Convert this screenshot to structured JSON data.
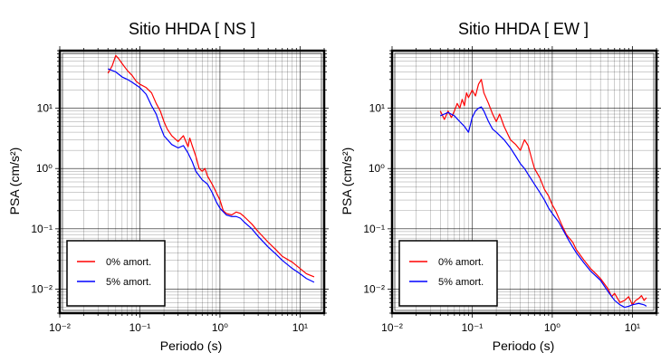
{
  "chart_data": [
    {
      "type": "line",
      "title": "Sitio HHDA [ NS ]",
      "xlabel": "Periodo (s)",
      "ylabel": "PSA (cm/s²)",
      "xscale": "log",
      "yscale": "log",
      "xlim": [
        0.01,
        20
      ],
      "ylim": [
        0.004,
        90
      ],
      "grid": true,
      "legend": "bottom-left",
      "x_ticks": [
        {
          "value": 0.01,
          "label": "10⁻²"
        },
        {
          "value": 0.1,
          "label": "10⁻¹"
        },
        {
          "value": 1,
          "label": "10⁰"
        },
        {
          "value": 10,
          "label": "10¹"
        }
      ],
      "y_ticks": [
        {
          "value": 0.01,
          "label": "10⁻²"
        },
        {
          "value": 0.1,
          "label": "10⁻¹"
        },
        {
          "value": 1,
          "label": "10⁰"
        },
        {
          "value": 10,
          "label": "10¹"
        }
      ],
      "series": [
        {
          "name": "0% amort.",
          "color": "#ff0000",
          "points": [
            [
              0.04,
              38
            ],
            [
              0.045,
              50
            ],
            [
              0.05,
              75
            ],
            [
              0.055,
              65
            ],
            [
              0.06,
              55
            ],
            [
              0.07,
              42
            ],
            [
              0.08,
              35
            ],
            [
              0.09,
              28
            ],
            [
              0.1,
              25
            ],
            [
              0.12,
              22
            ],
            [
              0.14,
              18
            ],
            [
              0.16,
              12
            ],
            [
              0.18,
              9
            ],
            [
              0.2,
              6
            ],
            [
              0.22,
              4.5
            ],
            [
              0.25,
              3.5
            ],
            [
              0.3,
              2.8
            ],
            [
              0.35,
              3.5
            ],
            [
              0.4,
              2.3
            ],
            [
              0.42,
              3.2
            ],
            [
              0.45,
              2.4
            ],
            [
              0.5,
              1.6
            ],
            [
              0.55,
              1.0
            ],
            [
              0.6,
              0.9
            ],
            [
              0.65,
              1.0
            ],
            [
              0.7,
              0.75
            ],
            [
              0.8,
              0.55
            ],
            [
              0.9,
              0.4
            ],
            [
              1.0,
              0.3
            ],
            [
              1.1,
              0.2
            ],
            [
              1.2,
              0.18
            ],
            [
              1.4,
              0.17
            ],
            [
              1.6,
              0.19
            ],
            [
              1.8,
              0.18
            ],
            [
              2.0,
              0.16
            ],
            [
              2.5,
              0.12
            ],
            [
              3.0,
              0.09
            ],
            [
              4.0,
              0.06
            ],
            [
              5.0,
              0.045
            ],
            [
              6.0,
              0.035
            ],
            [
              8.0,
              0.028
            ],
            [
              10.0,
              0.022
            ],
            [
              12.0,
              0.018
            ],
            [
              15.0,
              0.016
            ]
          ]
        },
        {
          "name": "5% amort.",
          "color": "#0000ff",
          "points": [
            [
              0.04,
              45
            ],
            [
              0.05,
              40
            ],
            [
              0.06,
              33
            ],
            [
              0.07,
              30
            ],
            [
              0.08,
              27
            ],
            [
              0.1,
              22
            ],
            [
              0.12,
              17
            ],
            [
              0.14,
              11
            ],
            [
              0.16,
              8
            ],
            [
              0.18,
              5
            ],
            [
              0.2,
              3.5
            ],
            [
              0.25,
              2.5
            ],
            [
              0.3,
              2.2
            ],
            [
              0.35,
              2.4
            ],
            [
              0.4,
              1.8
            ],
            [
              0.45,
              1.3
            ],
            [
              0.5,
              0.9
            ],
            [
              0.6,
              0.65
            ],
            [
              0.7,
              0.55
            ],
            [
              0.8,
              0.4
            ],
            [
              0.9,
              0.28
            ],
            [
              1.0,
              0.22
            ],
            [
              1.2,
              0.17
            ],
            [
              1.4,
              0.16
            ],
            [
              1.6,
              0.16
            ],
            [
              1.8,
              0.15
            ],
            [
              2.0,
              0.13
            ],
            [
              2.5,
              0.1
            ],
            [
              3.0,
              0.075
            ],
            [
              4.0,
              0.05
            ],
            [
              5.0,
              0.038
            ],
            [
              6.0,
              0.03
            ],
            [
              8.0,
              0.022
            ],
            [
              10.0,
              0.018
            ],
            [
              12.0,
              0.015
            ],
            [
              15.0,
              0.013
            ]
          ]
        }
      ]
    },
    {
      "type": "line",
      "title": "Sitio HHDA [ EW ]",
      "xlabel": "Periodo (s)",
      "ylabel": "PSA (cm/s²)",
      "xscale": "log",
      "yscale": "log",
      "xlim": [
        0.01,
        20
      ],
      "ylim": [
        0.004,
        90
      ],
      "grid": true,
      "legend": "bottom-left",
      "x_ticks": [
        {
          "value": 0.01,
          "label": "10⁻²"
        },
        {
          "value": 0.1,
          "label": "10⁻¹"
        },
        {
          "value": 1,
          "label": "10⁰"
        },
        {
          "value": 10,
          "label": "10¹"
        }
      ],
      "y_ticks": [
        {
          "value": 0.01,
          "label": "10⁻²"
        },
        {
          "value": 0.1,
          "label": "10⁻¹"
        },
        {
          "value": 1,
          "label": "10⁰"
        },
        {
          "value": 10,
          "label": "10¹"
        }
      ],
      "series": [
        {
          "name": "0% amort.",
          "color": "#ff0000",
          "points": [
            [
              0.04,
              9
            ],
            [
              0.045,
              6.5
            ],
            [
              0.05,
              9
            ],
            [
              0.055,
              7
            ],
            [
              0.06,
              9
            ],
            [
              0.065,
              12
            ],
            [
              0.07,
              10
            ],
            [
              0.075,
              14
            ],
            [
              0.08,
              11
            ],
            [
              0.085,
              18
            ],
            [
              0.09,
              15
            ],
            [
              0.1,
              20
            ],
            [
              0.11,
              16
            ],
            [
              0.12,
              25
            ],
            [
              0.13,
              30
            ],
            [
              0.14,
              18
            ],
            [
              0.16,
              12
            ],
            [
              0.18,
              8
            ],
            [
              0.2,
              6
            ],
            [
              0.22,
              8
            ],
            [
              0.25,
              5
            ],
            [
              0.3,
              3
            ],
            [
              0.35,
              2.5
            ],
            [
              0.4,
              2.0
            ],
            [
              0.45,
              3.0
            ],
            [
              0.5,
              2.4
            ],
            [
              0.55,
              1.5
            ],
            [
              0.6,
              1.0
            ],
            [
              0.7,
              0.7
            ],
            [
              0.8,
              0.45
            ],
            [
              0.9,
              0.35
            ],
            [
              1.0,
              0.25
            ],
            [
              1.1,
              0.2
            ],
            [
              1.3,
              0.12
            ],
            [
              1.5,
              0.08
            ],
            [
              1.8,
              0.06
            ],
            [
              2.0,
              0.045
            ],
            [
              2.5,
              0.03
            ],
            [
              3.0,
              0.022
            ],
            [
              3.5,
              0.018
            ],
            [
              4.0,
              0.015
            ],
            [
              5.0,
              0.01
            ],
            [
              5.5,
              0.0075
            ],
            [
              6.0,
              0.0085
            ],
            [
              7.0,
              0.006
            ],
            [
              8.0,
              0.0065
            ],
            [
              9.0,
              0.0075
            ],
            [
              10.0,
              0.0055
            ],
            [
              11.0,
              0.0065
            ],
            [
              12.0,
              0.007
            ],
            [
              13.0,
              0.0078
            ],
            [
              14.0,
              0.0065
            ],
            [
              15.0,
              0.0072
            ]
          ]
        },
        {
          "name": "5% amort.",
          "color": "#0000ff",
          "points": [
            [
              0.04,
              7.5
            ],
            [
              0.05,
              8.5
            ],
            [
              0.06,
              7.5
            ],
            [
              0.07,
              6
            ],
            [
              0.08,
              5
            ],
            [
              0.09,
              4
            ],
            [
              0.1,
              7
            ],
            [
              0.11,
              9
            ],
            [
              0.12,
              10
            ],
            [
              0.13,
              10.5
            ],
            [
              0.14,
              9
            ],
            [
              0.16,
              6
            ],
            [
              0.18,
              4.5
            ],
            [
              0.2,
              4
            ],
            [
              0.25,
              3
            ],
            [
              0.3,
              2.2
            ],
            [
              0.35,
              1.6
            ],
            [
              0.4,
              1.2
            ],
            [
              0.45,
              1.0
            ],
            [
              0.5,
              0.8
            ],
            [
              0.6,
              0.55
            ],
            [
              0.7,
              0.4
            ],
            [
              0.8,
              0.3
            ],
            [
              0.9,
              0.22
            ],
            [
              1.0,
              0.18
            ],
            [
              1.2,
              0.13
            ],
            [
              1.4,
              0.09
            ],
            [
              1.6,
              0.065
            ],
            [
              1.8,
              0.05
            ],
            [
              2.0,
              0.04
            ],
            [
              2.5,
              0.027
            ],
            [
              3.0,
              0.02
            ],
            [
              4.0,
              0.014
            ],
            [
              5.0,
              0.009
            ],
            [
              6.0,
              0.0065
            ],
            [
              7.0,
              0.0055
            ],
            [
              8.0,
              0.005
            ],
            [
              9.0,
              0.0052
            ],
            [
              10.0,
              0.0055
            ],
            [
              12.0,
              0.0058
            ],
            [
              14.0,
              0.0055
            ],
            [
              15.0,
              0.0052
            ]
          ]
        }
      ]
    }
  ]
}
